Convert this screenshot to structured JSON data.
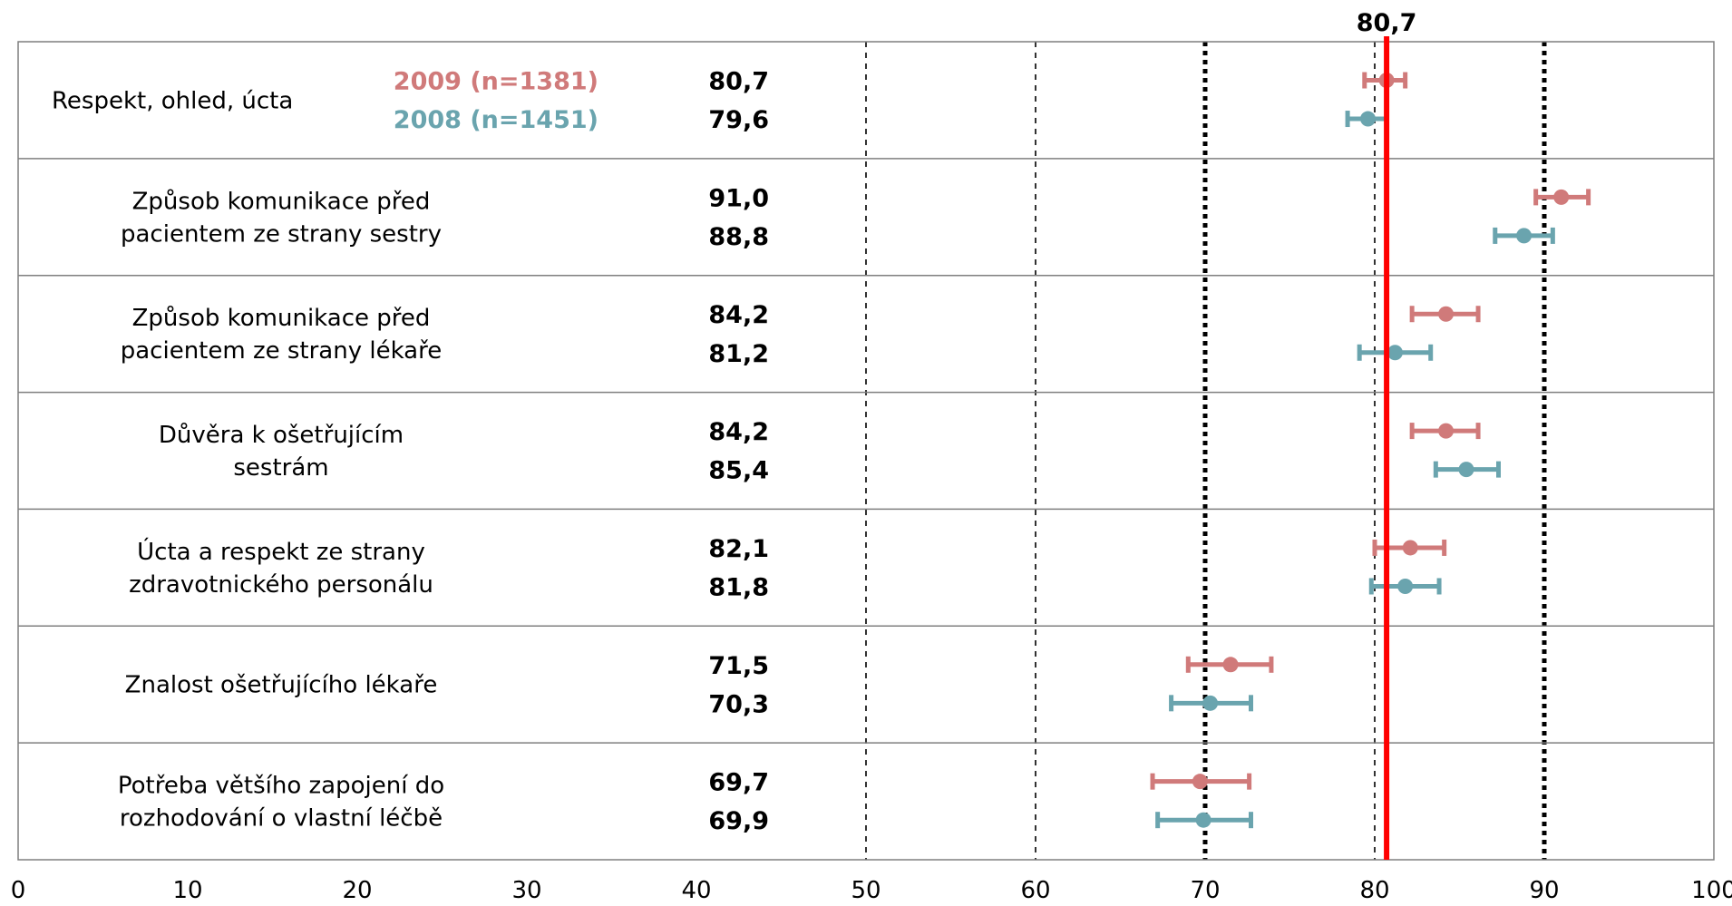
{
  "chart_data": {
    "type": "scatter",
    "x": [
      0,
      100
    ],
    "xlim": [
      0,
      100
    ],
    "xticks": [
      "0",
      "10",
      "20",
      "30",
      "40",
      "50",
      "60",
      "70",
      "80",
      "90",
      "100"
    ],
    "reference": {
      "value": 80.7,
      "label": "80,7",
      "color": "#ff0000"
    },
    "series": [
      {
        "name": "2009 (n=1381)",
        "color": "#d07a7a"
      },
      {
        "name": "2008 (n=1451)",
        "color": "#6aa4ae"
      }
    ],
    "rows": [
      {
        "label": [
          "Respekt, ohled, úcta"
        ],
        "values": [
          80.7,
          79.6
        ],
        "labels": [
          "80,7",
          "79,6"
        ],
        "ci": [
          [
            79.4,
            81.8
          ],
          [
            78.4,
            80.7
          ]
        ]
      },
      {
        "label": [
          "Způsob komunikace před",
          "pacientem ze strany sestry"
        ],
        "values": [
          91.0,
          88.8
        ],
        "labels": [
          "91,0",
          "88,8"
        ],
        "ci": [
          [
            89.5,
            92.6
          ],
          [
            87.1,
            90.5
          ]
        ]
      },
      {
        "label": [
          "Způsob komunikace před",
          "pacientem ze strany lékaře"
        ],
        "values": [
          84.2,
          81.2
        ],
        "labels": [
          "84,2",
          "81,2"
        ],
        "ci": [
          [
            82.2,
            86.1
          ],
          [
            79.1,
            83.3
          ]
        ]
      },
      {
        "label": [
          "Důvěra k ošetřujícím",
          "sestrám"
        ],
        "values": [
          84.2,
          85.4
        ],
        "labels": [
          "84,2",
          "85,4"
        ],
        "ci": [
          [
            82.2,
            86.1
          ],
          [
            83.6,
            87.3
          ]
        ]
      },
      {
        "label": [
          "Úcta a respekt ze strany",
          "zdravotnického personálu"
        ],
        "values": [
          82.1,
          81.8
        ],
        "labels": [
          "82,1",
          "81,8"
        ],
        "ci": [
          [
            80.0,
            84.1
          ],
          [
            79.8,
            83.8
          ]
        ]
      },
      {
        "label": [
          "Znalost ošetřujícího lékaře"
        ],
        "values": [
          71.5,
          70.3
        ],
        "labels": [
          "71,5",
          "70,3"
        ],
        "ci": [
          [
            69.0,
            73.9
          ],
          [
            68.0,
            72.7
          ]
        ]
      },
      {
        "label": [
          "Potřeba většího zapojení do",
          "rozhodování o vlastní léčbě"
        ],
        "values": [
          69.7,
          69.9
        ],
        "labels": [
          "69,7",
          "69,9"
        ],
        "ci": [
          [
            66.9,
            72.6
          ],
          [
            67.2,
            72.7
          ]
        ]
      }
    ],
    "gridlines": [
      {
        "value": 50,
        "style": "thin-dashed"
      },
      {
        "value": 60,
        "style": "thin-dashed"
      },
      {
        "value": 70,
        "style": "thick-dotted"
      },
      {
        "value": 80,
        "style": "thin-dashed"
      },
      {
        "value": 90,
        "style": "thick-dotted"
      }
    ]
  }
}
